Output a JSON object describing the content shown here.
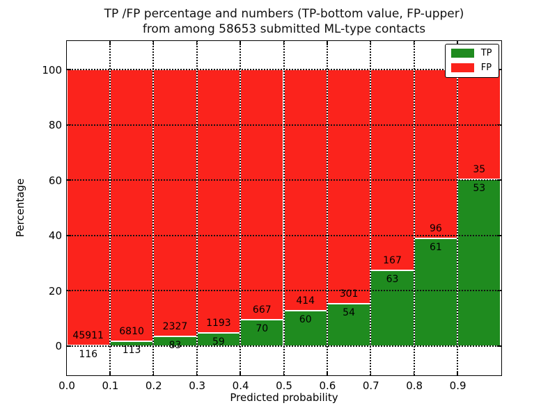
{
  "title": {
    "line1": "TP /FP percentage and numbers (TP-bottom value, FP-upper)",
    "line2": "from among 58653 submitted ML-type contacts"
  },
  "axes": {
    "xlabel": "Predicted probability",
    "ylabel": "Percentage",
    "xticks": [
      "0.0",
      "0.1",
      "0.2",
      "0.3",
      "0.4",
      "0.5",
      "0.6",
      "0.7",
      "0.8",
      "0.9"
    ],
    "yticks": [
      0,
      20,
      40,
      60,
      80,
      100
    ],
    "xlim": [
      0.0,
      1.0
    ],
    "ylim": [
      -10.5,
      110.5
    ]
  },
  "legend": {
    "position": "upper right",
    "items": [
      {
        "label": "TP",
        "color": "#1f8b1f"
      },
      {
        "label": "FP",
        "color": "#fb231c"
      }
    ]
  },
  "colors": {
    "tp_green": "#1f8b1f",
    "fp_red": "#fb231c",
    "axis": "#000000",
    "grid": "#111111",
    "bar_edge": "#ffffff",
    "background": "#ffffff"
  },
  "chart_data": {
    "type": "bar",
    "stacked": true,
    "normalized": "each bin stacked to 100%",
    "title": "TP /FP percentage and numbers (TP-bottom value, FP-upper) from among 58653 submitted ML-type contacts",
    "xlabel": "Predicted probability",
    "ylabel": "Percentage",
    "total_contacts": 58653,
    "bin_start": [
      0.0,
      0.1,
      0.2,
      0.3,
      0.4,
      0.5,
      0.6,
      0.7,
      0.8,
      0.9
    ],
    "bin_width": 0.1,
    "categories": [
      "0.0-0.1",
      "0.1-0.2",
      "0.2-0.3",
      "0.3-0.4",
      "0.4-0.5",
      "0.5-0.6",
      "0.6-0.7",
      "0.7-0.8",
      "0.8-0.9",
      "0.9-1.0"
    ],
    "series": [
      {
        "name": "TP",
        "color": "#1f8b1f",
        "counts": [
          116,
          113,
          83,
          59,
          70,
          60,
          54,
          63,
          61,
          53
        ]
      },
      {
        "name": "FP",
        "color": "#fb231c",
        "counts": [
          45911,
          6810,
          2327,
          1193,
          667,
          414,
          301,
          167,
          96,
          35
        ]
      }
    ],
    "tp_percent": [
      0.25,
      1.63,
      3.44,
      4.71,
      9.5,
      12.66,
      15.21,
      27.39,
      38.85,
      60.23
    ],
    "ylim": [
      -10.5,
      110.5
    ],
    "grid": "dotted, on",
    "legend_position": "upper right"
  }
}
